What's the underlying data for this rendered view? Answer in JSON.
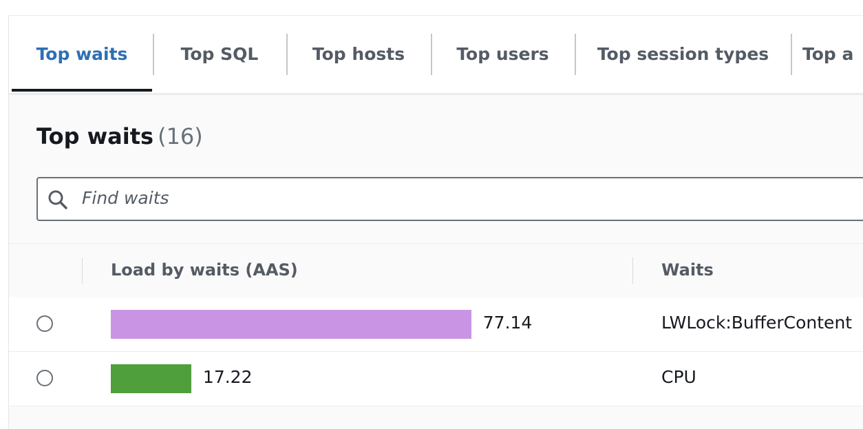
{
  "tabs": [
    "Top waits",
    "Top SQL",
    "Top hosts",
    "Top users",
    "Top session types",
    "Top a"
  ],
  "active_tab": 0,
  "panel": {
    "title": "Top waits",
    "count": "(16)",
    "search_placeholder": "Find waits"
  },
  "table": {
    "columns": [
      "Load by waits (AAS)",
      "Waits"
    ],
    "rows": [
      {
        "load": 77.14,
        "color": "#c994e3",
        "wait": "LWLock:BufferContent"
      },
      {
        "load": 17.22,
        "color": "#4f9f3d",
        "wait": "CPU"
      }
    ]
  }
}
